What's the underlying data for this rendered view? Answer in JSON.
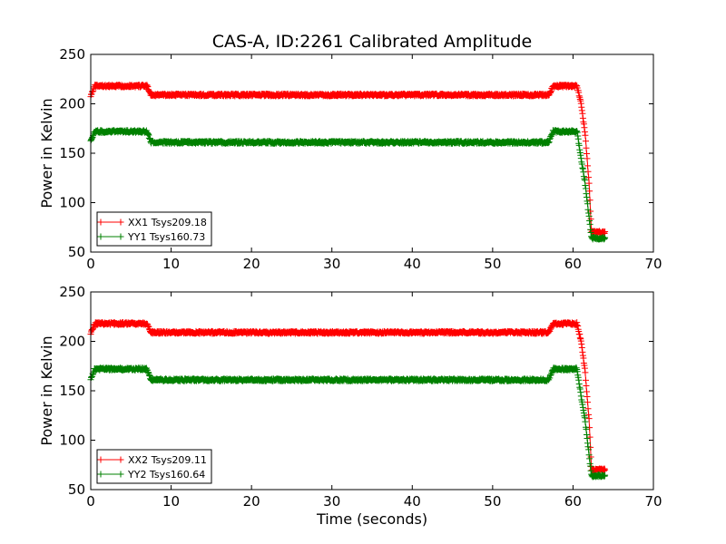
{
  "figure": {
    "title": "CAS-A, ID:2261 Calibrated Amplitude"
  },
  "chart_data": [
    {
      "type": "scatter",
      "title": "CAS-A, ID:2261 Calibrated Amplitude",
      "xlabel": "",
      "ylabel": "Power in Kelvin",
      "xlim": [
        0,
        70
      ],
      "ylim": [
        50,
        250
      ],
      "xticks": [
        "0",
        "10",
        "20",
        "30",
        "40",
        "50",
        "60",
        "70"
      ],
      "yticks": [
        "50",
        "100",
        "150",
        "200",
        "250"
      ],
      "grid": false,
      "legend_position": "lower-left",
      "marker": "+",
      "series": [
        {
          "name": "XX1 Tsys209.18",
          "color": "#ff0000",
          "x": [
            0.0,
            0.5,
            7.0,
            7.5,
            57.0,
            57.5,
            60.5,
            61.0,
            61.5,
            62.0,
            62.3,
            64.0
          ],
          "y": [
            208,
            218,
            218,
            209,
            209,
            218,
            218,
            200,
            170,
            120,
            70,
            70
          ]
        },
        {
          "name": "YY1 Tsys160.73",
          "color": "#008000",
          "x": [
            0.0,
            0.5,
            7.0,
            7.5,
            57.0,
            57.5,
            60.5,
            61.0,
            61.5,
            62.0,
            62.3,
            64.0
          ],
          "y": [
            162,
            172,
            172,
            161,
            161,
            172,
            172,
            145,
            120,
            85,
            64,
            64
          ]
        }
      ]
    },
    {
      "type": "scatter",
      "title": "",
      "xlabel": "Time (seconds)",
      "ylabel": "Power in Kelvin",
      "xlim": [
        0,
        70
      ],
      "ylim": [
        50,
        250
      ],
      "xticks": [
        "0",
        "10",
        "20",
        "30",
        "40",
        "50",
        "60",
        "70"
      ],
      "yticks": [
        "50",
        "100",
        "150",
        "200",
        "250"
      ],
      "grid": false,
      "legend_position": "lower-left",
      "marker": "+",
      "series": [
        {
          "name": "XX2 Tsys209.11",
          "color": "#ff0000",
          "x": [
            0.0,
            0.5,
            7.0,
            7.5,
            57.0,
            57.5,
            60.5,
            61.0,
            61.5,
            62.0,
            62.3,
            64.0
          ],
          "y": [
            208,
            218,
            218,
            209,
            209,
            218,
            218,
            200,
            170,
            120,
            70,
            70
          ]
        },
        {
          "name": "YY2 Tsys160.64",
          "color": "#008000",
          "x": [
            0.0,
            0.5,
            7.0,
            7.5,
            57.0,
            57.5,
            60.5,
            61.0,
            61.5,
            62.0,
            62.3,
            64.0
          ],
          "y": [
            162,
            172,
            172,
            161,
            161,
            172,
            172,
            145,
            120,
            85,
            64,
            64
          ]
        }
      ]
    }
  ]
}
